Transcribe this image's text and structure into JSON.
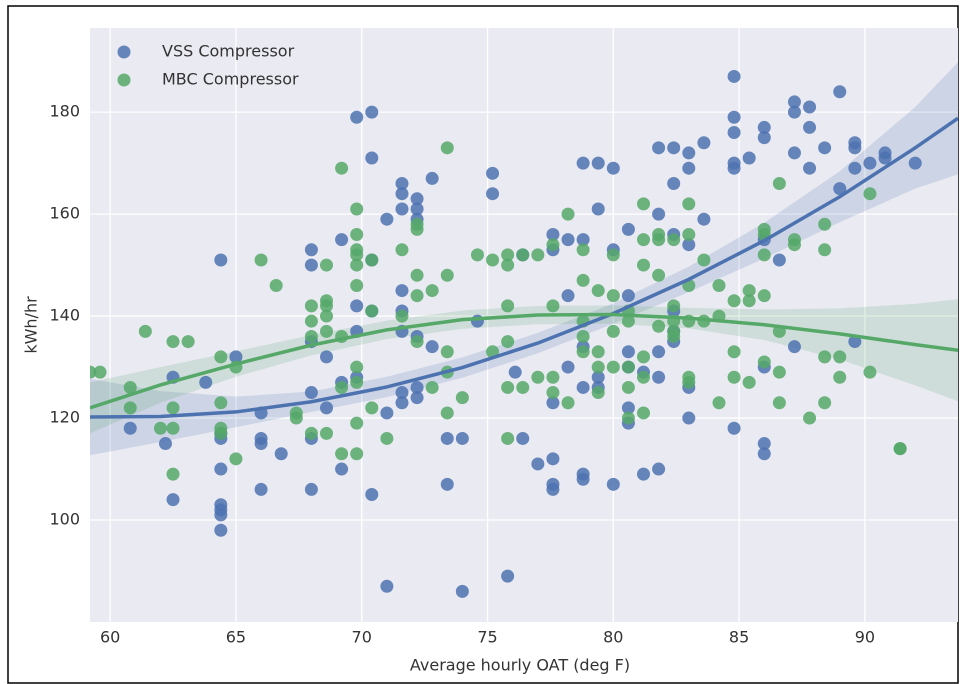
{
  "chart_data": {
    "type": "scatter",
    "xlabel": "Average hourly OAT (deg F)",
    "ylabel": "kWh/hr",
    "xlim": [
      59.2,
      93.7
    ],
    "ylim": [
      80,
      196.5
    ],
    "xticks": [
      60,
      65,
      70,
      75,
      80,
      85,
      90
    ],
    "yticks": [
      100,
      120,
      140,
      160,
      180
    ],
    "grid": true,
    "legend": "upper left",
    "series": [
      {
        "name": "VSS Compressor",
        "color": "#4c72b0",
        "x": [
          64.4,
          64.4,
          64.4,
          64.4,
          64.4,
          64.4,
          64.4,
          64.4,
          65,
          63.8,
          62.5,
          62.5,
          62.2,
          60.8,
          66,
          66,
          66,
          66,
          66.8,
          68,
          68,
          68,
          68,
          68,
          68,
          68.6,
          68.6,
          69.2,
          69.2,
          69.2,
          69.8,
          69.8,
          69.8,
          69.8,
          70.4,
          70.4,
          70.4,
          70.4,
          70.4,
          71,
          71,
          71,
          71.6,
          71.6,
          71.6,
          71.6,
          71.6,
          71.6,
          71.6,
          71.6,
          72.2,
          72.2,
          72.2,
          72.2,
          72.2,
          72.2,
          72.8,
          72.8,
          73.4,
          73.4,
          74,
          74,
          74.6,
          75.2,
          75.2,
          75.8,
          76.1,
          76.4,
          76.4,
          77,
          77.6,
          77.6,
          77.6,
          77.6,
          77.6,
          77.6,
          78.2,
          78.2,
          78.2,
          78.8,
          78.8,
          78.8,
          78.8,
          78.8,
          78.8,
          79.4,
          79.4,
          79.4,
          79.4,
          80,
          80,
          80,
          80.6,
          80.6,
          80.6,
          80.6,
          80.6,
          80.6,
          81.2,
          81.2,
          81.8,
          81.8,
          81.8,
          81.8,
          81.8,
          82.4,
          82.4,
          82.4,
          82.4,
          82.4,
          82.4,
          83,
          83,
          83,
          83,
          83,
          83.6,
          83.6,
          84.8,
          84.8,
          84.8,
          84.8,
          84.8,
          84.8,
          85.4,
          86,
          86,
          86,
          86,
          86,
          86,
          86.6,
          87.2,
          87.2,
          87.2,
          87.2,
          87.8,
          87.8,
          87.8,
          88.4,
          89,
          89,
          89.6,
          89.6,
          89.6,
          89.6,
          90.2,
          90.8,
          90.8,
          92
        ],
        "values": [
          151,
          102,
          101,
          98,
          103,
          110,
          117,
          116,
          132,
          127,
          128,
          104,
          115,
          118,
          121,
          116,
          115,
          106,
          113,
          153,
          150,
          135,
          125,
          116,
          106,
          132,
          122,
          155,
          127,
          110,
          179,
          142,
          137,
          128,
          180,
          171,
          151,
          141,
          105,
          159,
          121,
          87,
          166,
          164,
          161,
          145,
          141,
          137,
          125,
          123,
          163,
          159,
          161,
          136,
          126,
          124,
          167,
          134,
          107,
          116,
          116,
          86,
          139,
          168,
          164,
          89,
          129,
          116,
          152,
          111,
          156,
          153,
          123,
          112,
          107,
          106,
          155,
          144,
          130,
          170,
          155,
          134,
          126,
          109,
          108,
          170,
          161,
          128,
          126,
          169,
          153,
          107,
          157,
          144,
          133,
          130,
          122,
          119,
          129,
          109,
          173,
          160,
          133,
          128,
          110,
          173,
          166,
          156,
          141,
          137,
          135,
          172,
          169,
          154,
          126,
          120,
          174,
          159,
          187,
          179,
          176,
          170,
          169,
          118,
          171,
          177,
          175,
          155,
          130,
          115,
          113,
          151,
          182,
          180,
          172,
          134,
          181,
          177,
          169,
          173,
          184,
          165,
          174,
          173,
          169,
          135,
          170,
          172,
          171,
          170
        ],
        "fit_x": [
          59.2,
          62,
          65,
          68,
          71,
          74,
          77,
          80,
          83,
          86,
          89,
          92,
          93.7
        ],
        "fit_y": [
          120.2,
          120.3,
          121.2,
          123.2,
          126.1,
          129.9,
          134.7,
          140.5,
          147.2,
          154.8,
          163.4,
          173.0,
          178.8
        ],
        "fit_lower": [
          112.7,
          115.3,
          118.2,
          121.2,
          124.1,
          127.9,
          132.7,
          138.5,
          144.7,
          151.3,
          158.4,
          165,
          167.8
        ],
        "fit_upper": [
          127.7,
          125.3,
          124.2,
          125.2,
          128.1,
          131.9,
          136.7,
          142.5,
          149.7,
          158.3,
          168.4,
          181,
          189.8
        ]
      },
      {
        "name": "MBC Compressor",
        "color": "#55a868",
        "x": [
          59.2,
          59.6,
          60.8,
          60.8,
          61.4,
          62,
          62.5,
          62.5,
          62.5,
          62.5,
          63.1,
          64.4,
          64.4,
          64.4,
          64.4,
          65,
          65,
          66,
          66.6,
          67.4,
          67.4,
          68,
          68,
          68,
          68,
          68.6,
          68.6,
          68.6,
          68.6,
          68.6,
          68.6,
          69.2,
          69.2,
          69.2,
          69.2,
          69.8,
          69.8,
          69.8,
          69.8,
          69.8,
          69.8,
          69.8,
          69.8,
          69.8,
          69.8,
          70.4,
          70.4,
          70.4,
          71,
          71.6,
          71.6,
          72.2,
          72.2,
          72.2,
          72.2,
          72.2,
          72.8,
          72.8,
          73.4,
          73.4,
          73.4,
          73.4,
          73.4,
          74,
          74.6,
          75.2,
          75.2,
          75.8,
          75.8,
          75.8,
          75.8,
          75.8,
          75.8,
          76.4,
          76.4,
          77,
          77,
          77.6,
          77.6,
          77.6,
          77.6,
          78.2,
          78.2,
          78.8,
          78.8,
          78.8,
          78.8,
          78.8,
          79.4,
          79.4,
          79.4,
          79.4,
          80,
          80,
          80,
          80,
          80.6,
          80.6,
          80.6,
          80.6,
          80.6,
          81.2,
          81.2,
          81.2,
          81.2,
          81.2,
          81.2,
          81.8,
          81.8,
          81.8,
          81.8,
          82.4,
          82.4,
          82.4,
          82.4,
          82.4,
          83,
          83,
          83,
          83,
          83,
          83,
          83.6,
          83.6,
          84.2,
          84.2,
          84.2,
          84.8,
          84.8,
          84.8,
          85.4,
          85.4,
          85.4,
          86,
          86,
          86,
          86,
          86,
          86.6,
          86.6,
          86.6,
          86.6,
          87.2,
          87.2,
          87.8,
          88.4,
          88.4,
          88.4,
          88.4,
          89,
          89,
          90.2,
          90.2,
          91.4,
          91.4
        ],
        "values": [
          129,
          129,
          126,
          122,
          137,
          118,
          135,
          122,
          118,
          109,
          135,
          132,
          123,
          118,
          117,
          130,
          112,
          151,
          146,
          121,
          120,
          142,
          139,
          136,
          117,
          150,
          143,
          142,
          140,
          137,
          117,
          169,
          136,
          126,
          113,
          161,
          156,
          153,
          152,
          150,
          146,
          130,
          127,
          119,
          113,
          151,
          141,
          122,
          116,
          153,
          140,
          158,
          157,
          148,
          144,
          135,
          145,
          126,
          173,
          148,
          133,
          129,
          121,
          124,
          152,
          151,
          133,
          152,
          150,
          142,
          135,
          126,
          116,
          152,
          126,
          152,
          128,
          154,
          142,
          128,
          125,
          160,
          123,
          153,
          147,
          139,
          136,
          133,
          145,
          133,
          130,
          125,
          152,
          144,
          137,
          130,
          141,
          139,
          130,
          126,
          120,
          162,
          155,
          150,
          132,
          128,
          121,
          156,
          155,
          148,
          138,
          155,
          142,
          139,
          137,
          136,
          162,
          156,
          146,
          139,
          128,
          127,
          151,
          139,
          146,
          140,
          123,
          143,
          133,
          128,
          145,
          143,
          127,
          157,
          156,
          152,
          144,
          131,
          166,
          137,
          129,
          123,
          155,
          154,
          120,
          158,
          153,
          132,
          123,
          128,
          132,
          164,
          129,
          114,
          114
        ],
        "fit_x": [
          59.2,
          62,
          65,
          68,
          71,
          74,
          77,
          80,
          83,
          86,
          89,
          92,
          93.7
        ],
        "fit_y": [
          122,
          126.5,
          130.6,
          134.3,
          137.3,
          139.3,
          140.2,
          140.3,
          139.6,
          138.3,
          136.5,
          134.4,
          133.3
        ],
        "fit_lower": [
          117,
          123,
          128.1,
          132.3,
          135.5,
          137.5,
          138.4,
          138.5,
          137.6,
          135.3,
          131.5,
          126.4,
          123.3
        ],
        "fit_upper": [
          127,
          130,
          133.1,
          136.3,
          139.1,
          141.1,
          142,
          142.1,
          141.6,
          141.3,
          141.5,
          142.4,
          143.3
        ]
      }
    ]
  }
}
